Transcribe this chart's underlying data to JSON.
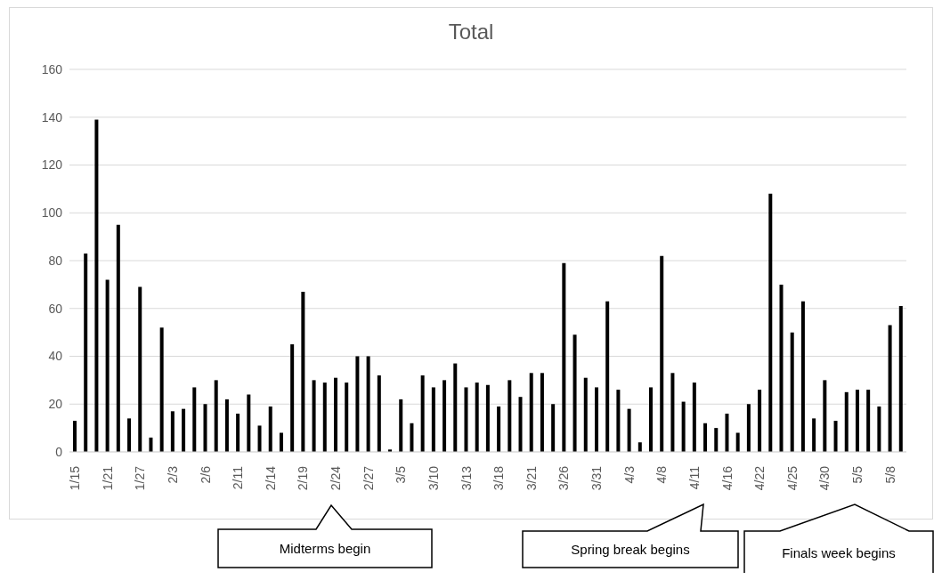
{
  "chart_data": {
    "type": "bar",
    "title": "Total",
    "categories": [
      "1/15",
      null,
      null,
      "1/21",
      null,
      null,
      "1/27",
      null,
      null,
      "2/3",
      null,
      null,
      "2/6",
      null,
      null,
      "2/11",
      null,
      null,
      "2/14",
      null,
      null,
      "2/19",
      null,
      null,
      "2/24",
      null,
      null,
      "2/27",
      null,
      null,
      "3/5",
      null,
      null,
      "3/10",
      null,
      null,
      "3/13",
      null,
      null,
      "3/18",
      null,
      null,
      "3/21",
      null,
      null,
      "3/26",
      null,
      null,
      "3/31",
      null,
      null,
      "4/3",
      null,
      null,
      "4/8",
      null,
      null,
      "4/11",
      null,
      null,
      "4/16",
      null,
      null,
      "4/22",
      null,
      null,
      "4/25",
      null,
      null,
      "4/30",
      null,
      null,
      "5/5",
      null,
      null,
      "5/8",
      null
    ],
    "values": [
      13,
      83,
      139,
      72,
      95,
      14,
      69,
      6,
      52,
      17,
      18,
      27,
      20,
      30,
      22,
      16,
      24,
      11,
      19,
      8,
      45,
      67,
      30,
      29,
      31,
      29,
      40,
      40,
      32,
      1,
      22,
      12,
      32,
      27,
      30,
      37,
      27,
      29,
      28,
      19,
      30,
      23,
      33,
      33,
      20,
      79,
      49,
      31,
      27,
      63,
      26,
      18,
      4,
      27,
      82,
      33,
      21,
      29,
      12,
      10,
      16,
      8,
      20,
      26,
      108,
      70,
      50,
      63,
      14,
      30,
      13,
      25,
      26,
      26,
      19,
      53,
      61
    ],
    "color": "#000000",
    "ylim": [
      0,
      160
    ],
    "yticks": [
      0,
      20,
      40,
      60,
      80,
      100,
      120,
      140,
      160
    ],
    "grid": "y",
    "annotations": [
      "Midterms begin",
      "Spring break begins",
      "Finals week begins"
    ]
  }
}
